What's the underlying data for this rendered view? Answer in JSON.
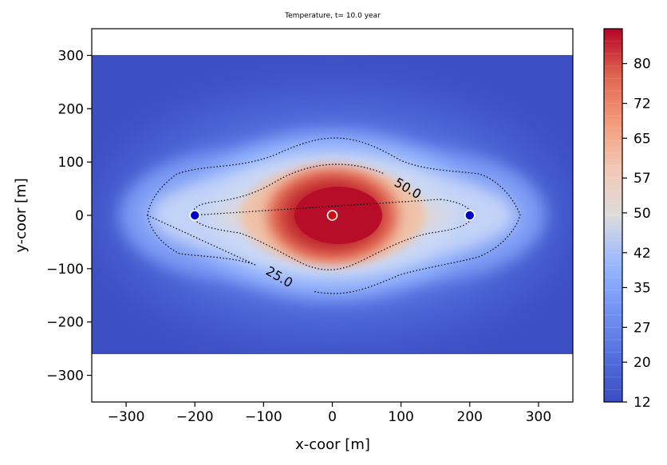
{
  "chart_data": {
    "type": "heatmap",
    "title": "Temperature, t= 10.0 year",
    "xlabel": "x-coor [m]",
    "ylabel": "y-coor [m]",
    "xlim": [
      -350,
      350
    ],
    "ylim": [
      -350,
      350
    ],
    "x_ticks": [
      -300,
      -200,
      -100,
      0,
      100,
      200,
      300
    ],
    "y_ticks": [
      300,
      200,
      100,
      0,
      -100,
      -200,
      -300
    ],
    "x_tick_labels": [
      "−300",
      "−200",
      "−100",
      "0",
      "100",
      "200",
      "300"
    ],
    "y_tick_labels": [
      "300",
      "200",
      "100",
      "0",
      "−100",
      "−200",
      "−300"
    ],
    "domain_x": [
      -350,
      350
    ],
    "domain_y": [
      -260,
      300
    ],
    "colorbar": {
      "min": 12,
      "max": 87,
      "ticks": [
        12,
        20,
        27,
        35,
        42,
        50,
        57,
        65,
        72,
        80
      ],
      "colormap": "coolwarm"
    },
    "contours": [
      {
        "level": 25.0,
        "label": "25.0",
        "style": "dotted"
      },
      {
        "level": 50.0,
        "label": "50.0",
        "style": "dotted"
      }
    ],
    "wells": [
      {
        "x": -200,
        "y": 0,
        "color": "#0000cc"
      },
      {
        "x": 0,
        "y": 0,
        "color": "#cc1111"
      },
      {
        "x": 200,
        "y": 0,
        "color": "#0000cc"
      }
    ]
  }
}
